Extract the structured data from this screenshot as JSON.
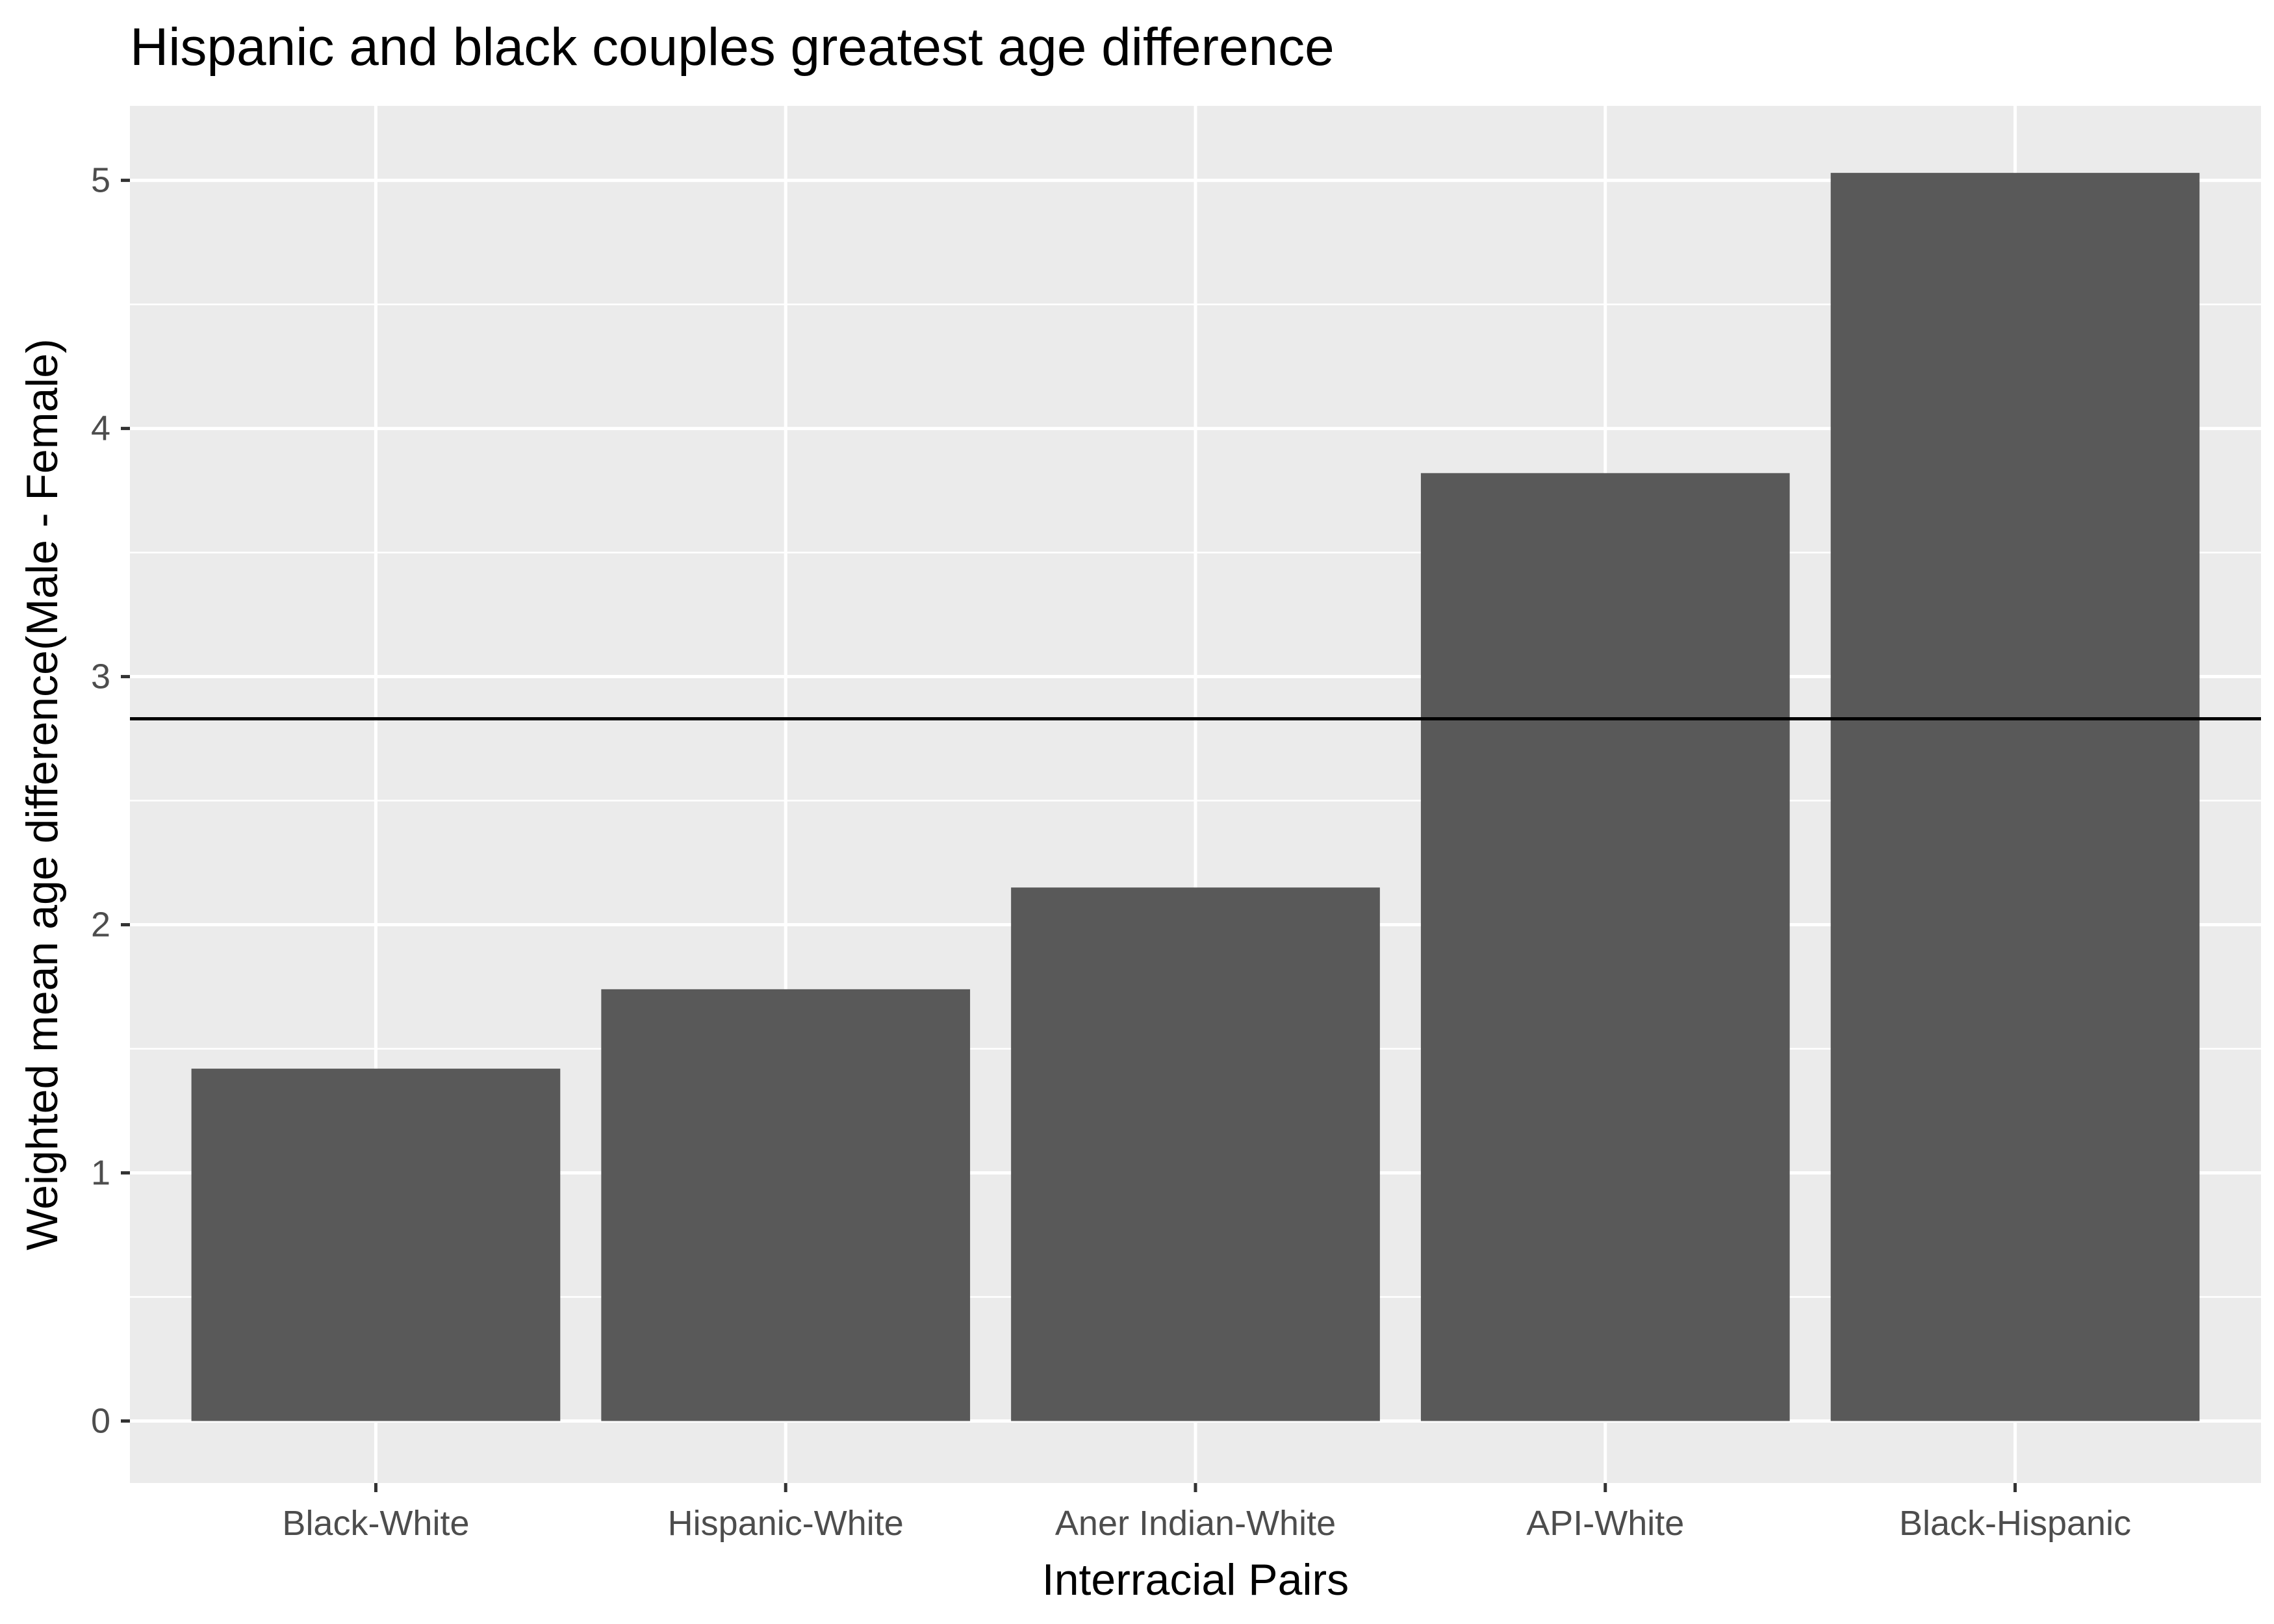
{
  "chart_data": {
    "type": "bar",
    "title": "Hispanic and black couples greatest age difference",
    "xlabel": "Interracial Pairs",
    "ylabel": "Weighted mean age difference(Male - Female)",
    "categories": [
      "Black-White",
      "Hispanic-White",
      "Aner Indian-White",
      "API-White",
      "Black-Hispanic"
    ],
    "values": [
      1.42,
      1.74,
      2.15,
      3.82,
      5.03
    ],
    "ylim": [
      -0.25,
      5.3
    ],
    "yticks": [
      0,
      1,
      2,
      3,
      4,
      5
    ],
    "reference_line": {
      "y": 2.83
    },
    "grid": true,
    "colors": {
      "bar": "#595959",
      "panel_background": "#ebebeb",
      "grid": "#ffffff",
      "reference_line": "#000000",
      "tick_label": "#4d4d4d"
    }
  }
}
